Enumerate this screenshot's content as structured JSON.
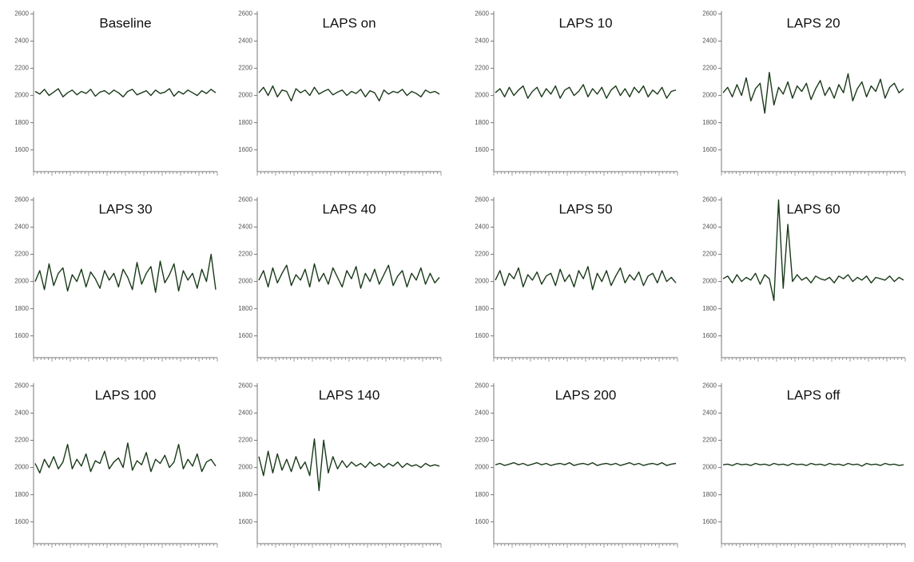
{
  "chart_data": [
    {
      "type": "line",
      "title": "Baseline",
      "color": "#1a3a1a",
      "ylim": [
        1440,
        2620
      ],
      "yticks": [
        1600,
        1800,
        2000,
        2200,
        2400,
        2600
      ],
      "values": [
        2030,
        2010,
        2045,
        2000,
        2025,
        2050,
        1990,
        2020,
        2040,
        2005,
        2030,
        2015,
        2045,
        1995,
        2025,
        2035,
        2010,
        2040,
        2020,
        1990,
        2030,
        2045,
        2005,
        2020,
        2035,
        2000,
        2040,
        2015,
        2025,
        2050,
        1995,
        2030,
        2010,
        2040,
        2020,
        2000,
        2035,
        2015,
        2045,
        2020
      ]
    },
    {
      "type": "line",
      "title": "LAPS on",
      "color": "#1a3a1a",
      "ylim": [
        1440,
        2620
      ],
      "yticks": [
        1600,
        1800,
        2000,
        2200,
        2400,
        2600
      ],
      "values": [
        2020,
        2060,
        2000,
        2070,
        1990,
        2040,
        2030,
        1960,
        2050,
        2020,
        2040,
        2000,
        2060,
        2010,
        2030,
        2045,
        2005,
        2025,
        2040,
        2000,
        2030,
        2015,
        2045,
        1990,
        2035,
        2020,
        1960,
        2040,
        2010,
        2030,
        2020,
        2045,
        2000,
        2030,
        2015,
        1990,
        2040,
        2020,
        2030,
        2010
      ]
    },
    {
      "type": "line",
      "title": "LAPS 10",
      "color": "#1a3a1a",
      "ylim": [
        1440,
        2620
      ],
      "yticks": [
        1600,
        1800,
        2000,
        2200,
        2400,
        2600
      ],
      "values": [
        2020,
        2050,
        1990,
        2060,
        2000,
        2040,
        2070,
        1980,
        2030,
        2060,
        1990,
        2050,
        2010,
        2070,
        1980,
        2040,
        2060,
        2000,
        2030,
        2080,
        1990,
        2050,
        2010,
        2060,
        1980,
        2040,
        2070,
        2000,
        2050,
        1990,
        2060,
        2020,
        2070,
        1990,
        2040,
        2010,
        2060,
        1980,
        2030,
        2040
      ]
    },
    {
      "type": "line",
      "title": "LAPS 20",
      "color": "#1a3a1a",
      "ylim": [
        1440,
        2620
      ],
      "yticks": [
        1600,
        1800,
        2000,
        2200,
        2400,
        2600
      ],
      "values": [
        2020,
        2060,
        1990,
        2080,
        2000,
        2130,
        1960,
        2050,
        2090,
        1870,
        2170,
        1930,
        2060,
        2010,
        2100,
        1980,
        2070,
        2030,
        2090,
        1970,
        2050,
        2110,
        2000,
        2060,
        1980,
        2080,
        2020,
        2160,
        1960,
        2050,
        2100,
        1990,
        2070,
        2030,
        2120,
        1980,
        2060,
        2090,
        2020,
        2050
      ]
    },
    {
      "type": "line",
      "title": "LAPS 30",
      "color": "#1a3a1a",
      "ylim": [
        1440,
        2620
      ],
      "yticks": [
        1600,
        1800,
        2000,
        2200,
        2400,
        2600
      ],
      "values": [
        2000,
        2080,
        1940,
        2130,
        1970,
        2060,
        2100,
        1930,
        2050,
        2000,
        2090,
        1960,
        2070,
        2020,
        1950,
        2080,
        2010,
        2060,
        1960,
        2090,
        2030,
        1940,
        2140,
        1980,
        2060,
        2110,
        1920,
        2150,
        1990,
        2050,
        2130,
        1930,
        2080,
        2010,
        2060,
        1950,
        2090,
        2000,
        2200,
        1940
      ]
    },
    {
      "type": "line",
      "title": "LAPS 40",
      "color": "#1a3a1a",
      "ylim": [
        1440,
        2620
      ],
      "yticks": [
        1600,
        1800,
        2000,
        2200,
        2400,
        2600
      ],
      "values": [
        2010,
        2080,
        1960,
        2100,
        1990,
        2060,
        2120,
        1970,
        2050,
        2010,
        2090,
        1960,
        2130,
        2000,
        2060,
        1980,
        2100,
        2030,
        1960,
        2080,
        2020,
        2110,
        1950,
        2060,
        2000,
        2090,
        1980,
        2050,
        2120,
        1970,
        2040,
        2080,
        1960,
        2060,
        2010,
        2100,
        1980,
        2060,
        1990,
        2030
      ]
    },
    {
      "type": "line",
      "title": "LAPS 50",
      "color": "#1a3a1a",
      "ylim": [
        1440,
        2620
      ],
      "yticks": [
        1600,
        1800,
        2000,
        2200,
        2400,
        2600
      ],
      "values": [
        2010,
        2080,
        1970,
        2060,
        2020,
        2100,
        1960,
        2050,
        2010,
        2070,
        1980,
        2040,
        2060,
        1970,
        2090,
        2000,
        2050,
        1960,
        2080,
        2020,
        2110,
        1940,
        2060,
        2000,
        2080,
        1970,
        2040,
        2100,
        1990,
        2050,
        2010,
        2070,
        1970,
        2040,
        2060,
        1990,
        2080,
        2000,
        2030,
        1990
      ]
    },
    {
      "type": "line",
      "title": "LAPS 60",
      "color": "#1a3a1a",
      "ylim": [
        1440,
        2620
      ],
      "yticks": [
        1600,
        1800,
        2000,
        2200,
        2400,
        2600
      ],
      "values": [
        2020,
        2040,
        1990,
        2050,
        2000,
        2030,
        2010,
        2060,
        1980,
        2050,
        2020,
        1860,
        2600,
        1950,
        2420,
        2000,
        2050,
        2010,
        2030,
        1990,
        2040,
        2020,
        2010,
        2030,
        1990,
        2040,
        2020,
        2050,
        2000,
        2030,
        2010,
        2040,
        1990,
        2030,
        2020,
        2010,
        2040,
        2000,
        2030,
        2010
      ]
    },
    {
      "type": "line",
      "title": "LAPS 100",
      "color": "#1a3a1a",
      "ylim": [
        1440,
        2620
      ],
      "yticks": [
        1600,
        1800,
        2000,
        2200,
        2400,
        2600
      ],
      "values": [
        2030,
        1960,
        2060,
        2000,
        2080,
        1990,
        2040,
        2170,
        1990,
        2060,
        2010,
        2100,
        1970,
        2050,
        2030,
        2120,
        1990,
        2040,
        2070,
        2000,
        2180,
        1980,
        2050,
        2020,
        2110,
        1970,
        2060,
        2030,
        2090,
        2000,
        2040,
        2170,
        1990,
        2060,
        2010,
        2100,
        1970,
        2040,
        2060,
        2010
      ]
    },
    {
      "type": "line",
      "title": "LAPS 140",
      "color": "#1a3a1a",
      "ylim": [
        1440,
        2620
      ],
      "yticks": [
        1600,
        1800,
        2000,
        2200,
        2400,
        2600
      ],
      "values": [
        2080,
        1940,
        2120,
        1960,
        2100,
        1980,
        2060,
        1970,
        2080,
        1990,
        2040,
        1940,
        2210,
        1830,
        2200,
        1960,
        2080,
        1990,
        2050,
        2000,
        2040,
        2010,
        2030,
        2000,
        2040,
        2010,
        2030,
        2000,
        2030,
        2010,
        2040,
        2000,
        2030,
        2010,
        2020,
        2000,
        2030,
        2010,
        2020,
        2010
      ]
    },
    {
      "type": "line",
      "title": "LAPS 200",
      "color": "#1a3a1a",
      "ylim": [
        1440,
        2620
      ],
      "yticks": [
        1600,
        1800,
        2000,
        2200,
        2400,
        2600
      ],
      "values": [
        2020,
        2030,
        2015,
        2025,
        2035,
        2020,
        2030,
        2015,
        2025,
        2035,
        2020,
        2030,
        2015,
        2025,
        2030,
        2020,
        2035,
        2015,
        2025,
        2030,
        2020,
        2035,
        2015,
        2025,
        2030,
        2020,
        2030,
        2015,
        2025,
        2035,
        2020,
        2030,
        2015,
        2025,
        2030,
        2020,
        2035,
        2015,
        2025,
        2030
      ]
    },
    {
      "type": "line",
      "title": "LAPS off",
      "color": "#1a3a1a",
      "ylim": [
        1440,
        2620
      ],
      "yticks": [
        1600,
        1800,
        2000,
        2200,
        2400,
        2600
      ],
      "values": [
        2020,
        2025,
        2015,
        2030,
        2020,
        2025,
        2015,
        2030,
        2020,
        2025,
        2015,
        2030,
        2020,
        2025,
        2015,
        2030,
        2020,
        2025,
        2015,
        2030,
        2020,
        2025,
        2015,
        2030,
        2020,
        2025,
        2015,
        2030,
        2020,
        2025,
        2010,
        2030,
        2020,
        2025,
        2015,
        2030,
        2020,
        2025,
        2015,
        2020
      ]
    }
  ]
}
